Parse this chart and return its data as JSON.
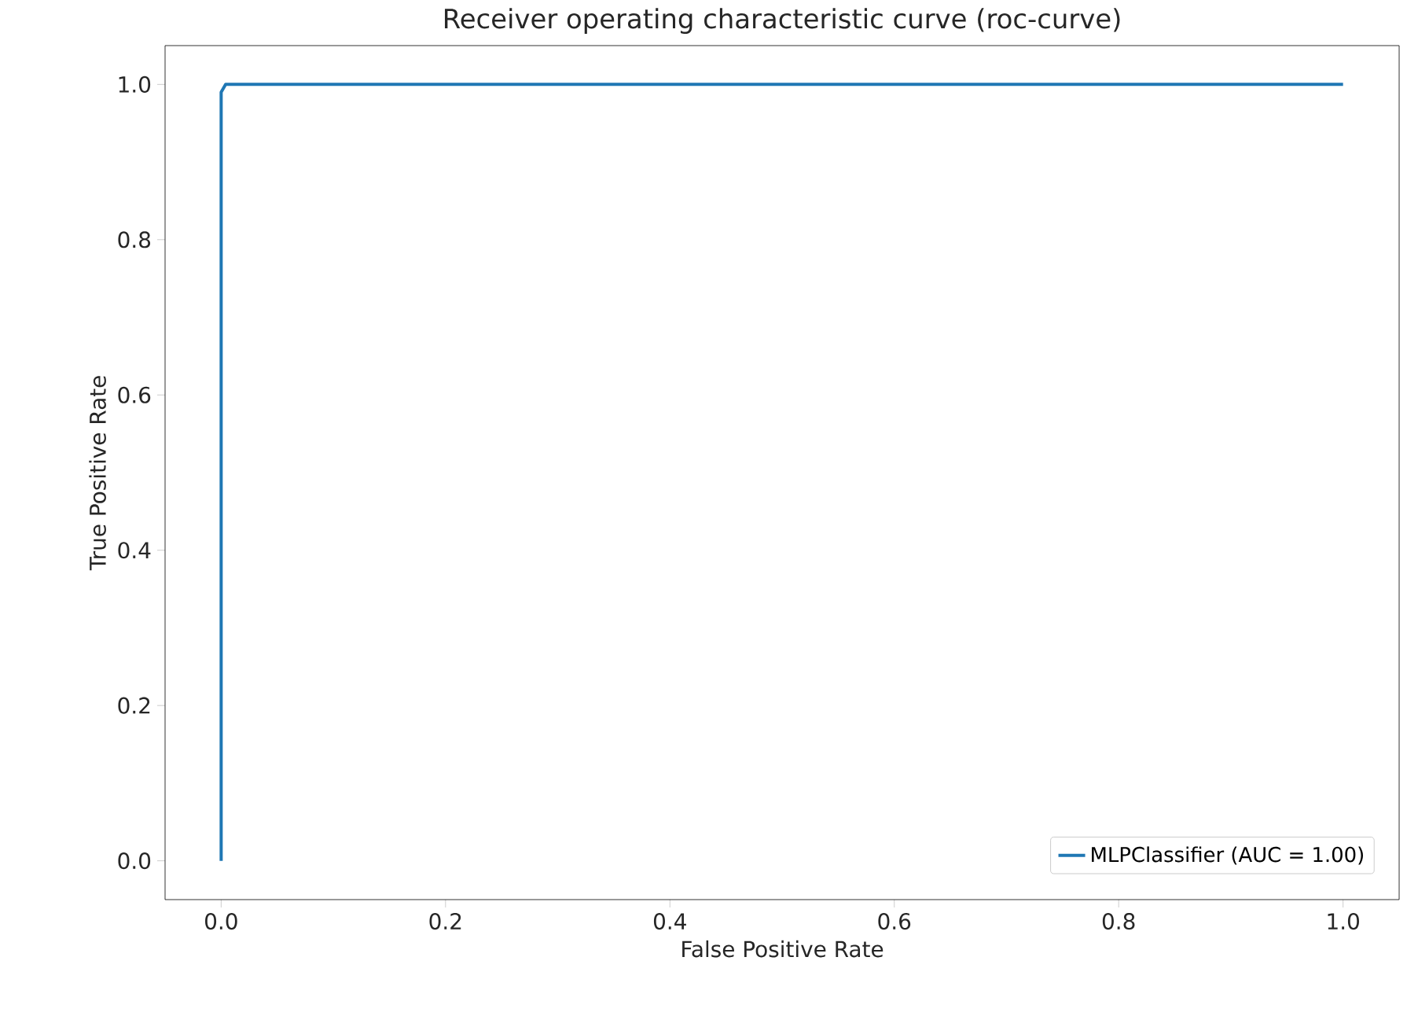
{
  "chart_data": {
    "type": "line",
    "title": "Receiver operating characteristic curve (roc-curve)",
    "xlabel": "False Positive Rate",
    "ylabel": "True Positive Rate",
    "series": [
      {
        "name": "MLPClassifier (AUC = 1.00)",
        "color": "#1f77b4",
        "x": [
          0,
          0,
          0.004,
          1
        ],
        "values": [
          0,
          0.99,
          1,
          1
        ]
      }
    ],
    "xlim": [
      -0.05,
      1.05
    ],
    "ylim": [
      -0.05,
      1.05
    ],
    "xticks": [
      {
        "value": 0,
        "label": "0.0"
      },
      {
        "value": 0.2,
        "label": "0.2"
      },
      {
        "value": 0.4,
        "label": "0.4"
      },
      {
        "value": 0.6,
        "label": "0.6"
      },
      {
        "value": 0.8,
        "label": "0.8"
      },
      {
        "value": 1,
        "label": "1.0"
      }
    ],
    "yticks": [
      {
        "value": 0,
        "label": "0.0"
      },
      {
        "value": 0.2,
        "label": "0.2"
      },
      {
        "value": 0.4,
        "label": "0.4"
      },
      {
        "value": 0.6,
        "label": "0.6"
      },
      {
        "value": 0.8,
        "label": "0.8"
      },
      {
        "value": 1,
        "label": "1.0"
      }
    ],
    "grid": false,
    "legend": "bottom right",
    "line_style": "solid",
    "marker": "none"
  }
}
